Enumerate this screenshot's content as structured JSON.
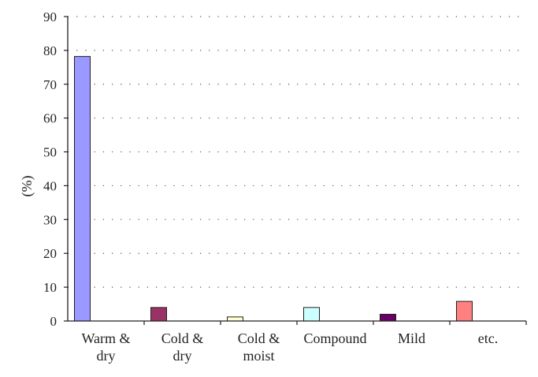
{
  "chart_data": {
    "type": "bar",
    "categories": [
      [
        "Warm &",
        "dry"
      ],
      [
        "Cold &",
        "dry"
      ],
      [
        "Cold &",
        "moist"
      ],
      [
        "Compound"
      ],
      [
        "Mild"
      ],
      [
        "etc."
      ]
    ],
    "values": [
      78.2,
      4.0,
      1.2,
      4.0,
      2.0,
      5.8
    ],
    "bar_colors": [
      "#9999ff",
      "#993366",
      "#ffffcc",
      "#ccffff",
      "#660066",
      "#ff8080"
    ],
    "xlabel": "",
    "ylabel": "(%)",
    "ylim": [
      0,
      90
    ],
    "yticks": [
      0,
      10,
      20,
      30,
      40,
      50,
      60,
      70,
      80,
      90
    ],
    "grid": "dotted-horizontal",
    "legend": "none"
  }
}
